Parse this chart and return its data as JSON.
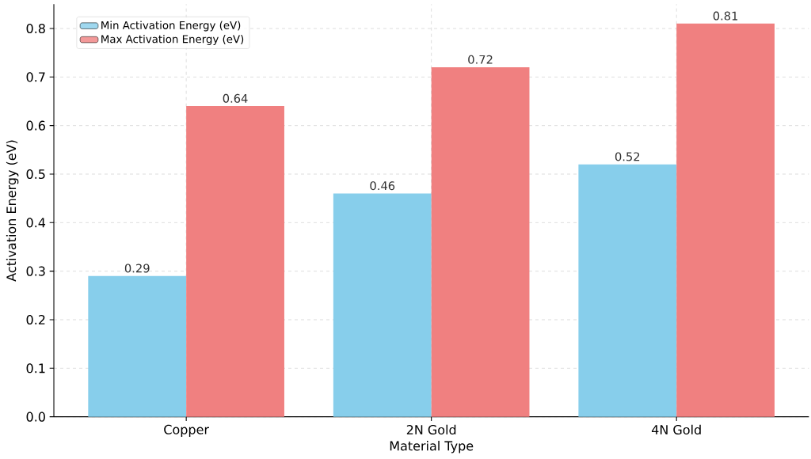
{
  "chart_data": {
    "type": "bar",
    "xlabel": "Material Type",
    "ylabel": "Activation Energy (eV)",
    "categories": [
      "Copper",
      "2N Gold",
      "4N Gold"
    ],
    "series": [
      {
        "name": "Min Activation Energy (eV)",
        "color": "#87ceeb",
        "values": [
          0.29,
          0.46,
          0.52
        ]
      },
      {
        "name": "Max Activation Energy (eV)",
        "color": "#f08080",
        "values": [
          0.64,
          0.72,
          0.81
        ]
      }
    ],
    "ylim": [
      0,
      0.85
    ],
    "yticks": [
      {
        "value": 0,
        "label": "0.0"
      },
      0.1,
      0.2,
      0.3,
      0.4,
      0.5,
      0.6,
      0.7,
      0.8
    ],
    "grid": true,
    "legend": "top left",
    "data_labels": true
  }
}
